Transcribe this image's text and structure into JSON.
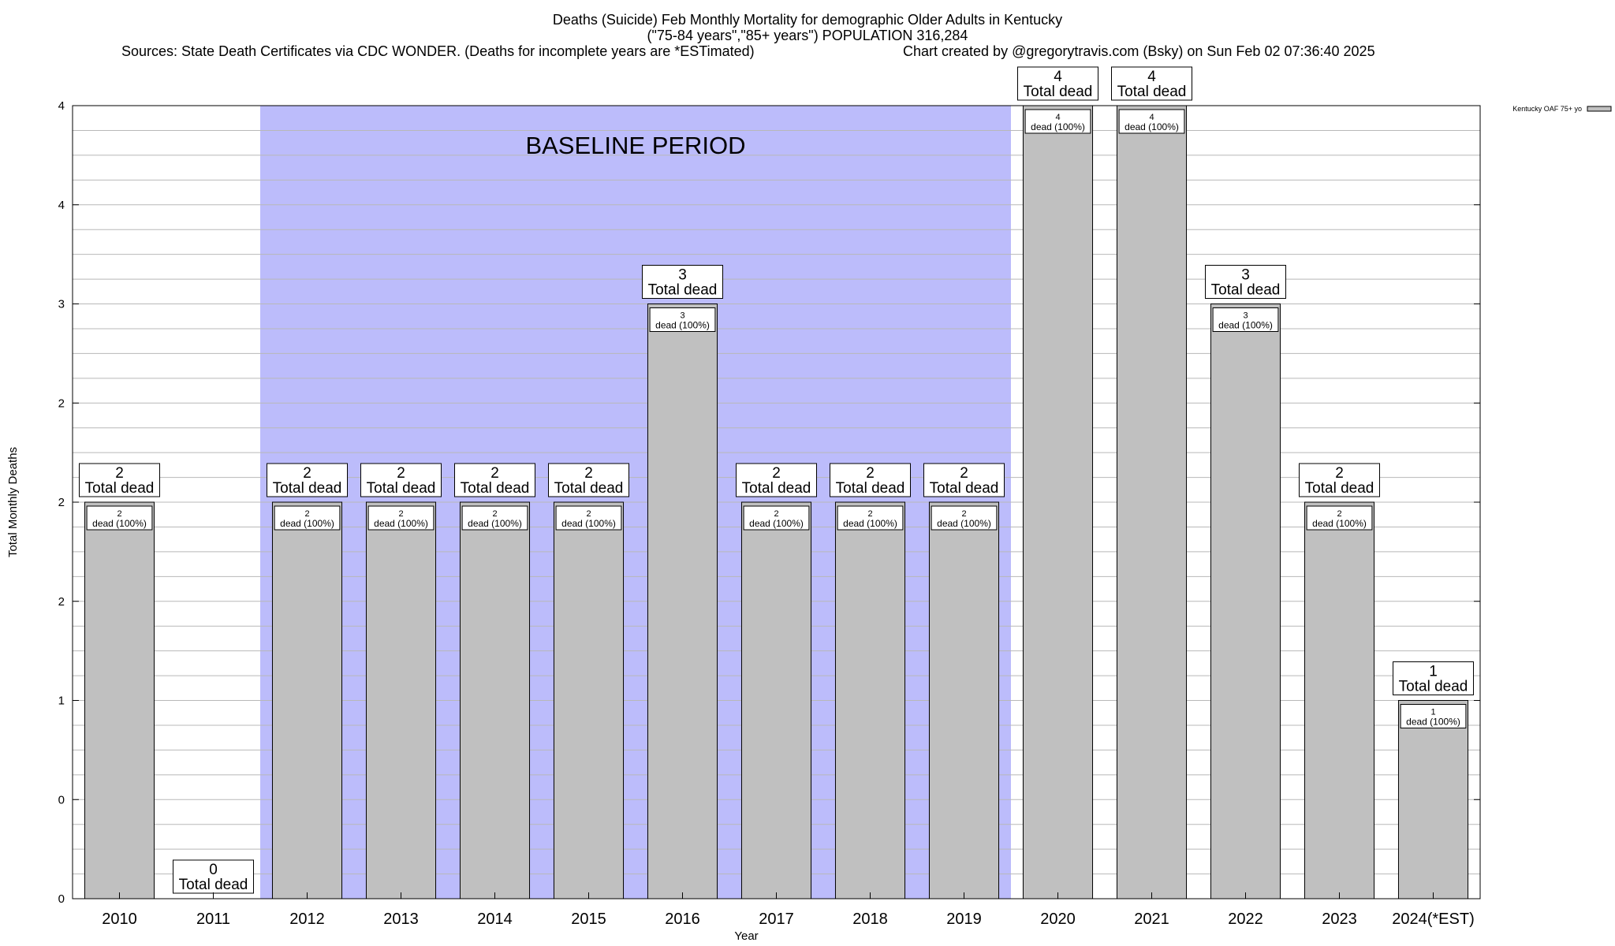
{
  "header": {
    "title": "Deaths (Suicide) Feb Monthly Mortality for demographic Older Adults in Kentucky",
    "subtitle": "(\"75-84 years\",\"85+ years\") POPULATION 316,284",
    "sources": "Sources: State Death Certificates via CDC WONDER. (Deaths for incomplete years are *ESTimated)",
    "credit": "Chart created by @gregorytravis.com (Bsky) on Sun Feb 02 07:36:40 2025"
  },
  "chart_data": {
    "type": "bar",
    "title": "Deaths (Suicide) Feb Monthly Mortality for demographic Older Adults in Kentucky",
    "xlabel": "Year",
    "ylabel": "Total Monthly Deaths",
    "ylim": [
      0,
      4
    ],
    "y_tick_values": [
      0,
      0.5,
      1,
      1.5,
      2,
      2.5,
      3,
      3.5,
      4
    ],
    "y_tick_labels": [
      "0",
      "0",
      "1",
      "2",
      "2",
      "2",
      "3",
      "4",
      "4"
    ],
    "grid": true,
    "categories": [
      "2010",
      "2011",
      "2012",
      "2013",
      "2014",
      "2015",
      "2016",
      "2017",
      "2018",
      "2019",
      "2020",
      "2021",
      "2022",
      "2023",
      "2024(*EST)"
    ],
    "series": [
      {
        "name": "Kentucky OAF 75+ yo",
        "values": [
          2,
          0,
          2,
          2,
          2,
          2,
          3,
          2,
          2,
          2,
          4,
          4,
          3,
          2,
          1
        ]
      }
    ],
    "total_labels": [
      "2",
      "0",
      "2",
      "2",
      "2",
      "2",
      "3",
      "2",
      "2",
      "2",
      "4",
      "4",
      "3",
      "2",
      "1"
    ],
    "total_suffix": "Total dead",
    "bar_labels": [
      "2",
      "",
      "2",
      "2",
      "2",
      "2",
      "3",
      "2",
      "2",
      "2",
      "4",
      "4",
      "3",
      "2",
      "1"
    ],
    "bar_suffix": "dead (100%)",
    "baseline": {
      "label": "BASELINE PERIOD",
      "start": "2012",
      "end": "2019",
      "color": "#bcbcfb"
    },
    "bar_color": "#c0c0c0",
    "legend": {
      "label": "Kentucky OAF 75+ yo",
      "position": "top-right"
    }
  }
}
